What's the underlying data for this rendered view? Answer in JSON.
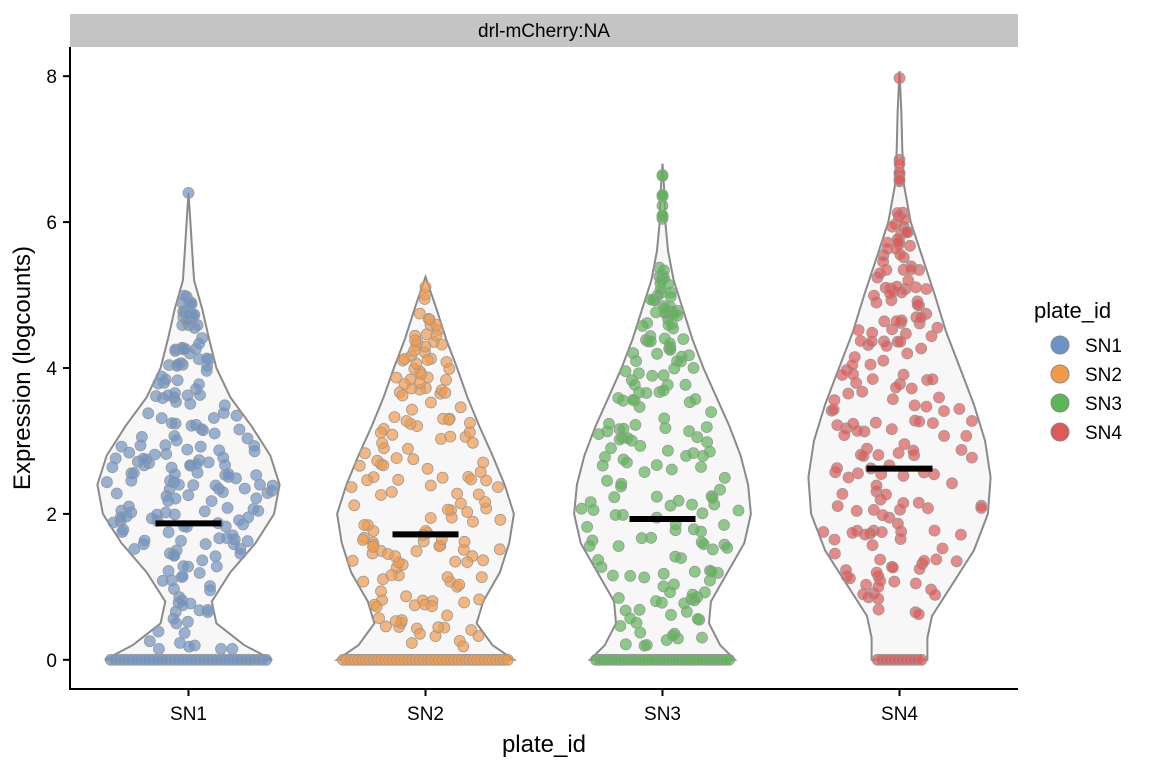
{
  "chart_data": {
    "type": "violin",
    "facet_label": "drl-mCherry:NA",
    "xlabel": "plate_id",
    "ylabel": "Expression (logcounts)",
    "ylim": [
      -0.4,
      8.4
    ],
    "yticks": [
      0,
      2,
      4,
      6,
      8
    ],
    "categories": [
      "SN1",
      "SN2",
      "SN3",
      "SN4"
    ],
    "legend": {
      "title": "plate_id",
      "position": "right",
      "entries": [
        {
          "label": "SN1",
          "color": "#6d93c5"
        },
        {
          "label": "SN2",
          "color": "#f29a4a"
        },
        {
          "label": "SN3",
          "color": "#5cb556"
        },
        {
          "label": "SN4",
          "color": "#df5a57"
        }
      ]
    },
    "series": [
      {
        "category": "SN1",
        "color": "#6d93c5",
        "median": 1.87,
        "max": 6.4,
        "zero_count": 38,
        "density": [
          [
            0,
            0.9
          ],
          [
            0.2,
            0.6
          ],
          [
            0.5,
            0.3
          ],
          [
            0.8,
            0.25
          ],
          [
            1.2,
            0.45
          ],
          [
            1.6,
            0.72
          ],
          [
            2.0,
            0.92
          ],
          [
            2.4,
            0.98
          ],
          [
            2.8,
            0.88
          ],
          [
            3.2,
            0.68
          ],
          [
            3.6,
            0.45
          ],
          [
            4.0,
            0.3
          ],
          [
            4.4,
            0.22
          ],
          [
            4.8,
            0.15
          ],
          [
            5.2,
            0.06
          ],
          [
            5.6,
            0.04
          ],
          [
            6.0,
            0.02
          ],
          [
            6.4,
            0.0
          ]
        ],
        "nonzero_points": [
          0.2,
          0.5,
          0.8,
          1.1,
          1.3,
          1.5,
          1.6,
          1.8,
          1.9,
          2.0,
          2.1,
          2.2,
          2.3,
          2.4,
          2.5,
          2.6,
          2.7,
          2.8,
          2.9,
          3.0,
          3.2,
          3.4,
          3.6,
          3.8,
          4.0,
          4.2,
          4.4,
          4.6,
          4.8,
          4.9,
          6.4
        ]
      },
      {
        "category": "SN2",
        "color": "#f29a4a",
        "median": 1.72,
        "max": 5.25,
        "zero_count": 44,
        "density": [
          [
            0,
            0.95
          ],
          [
            0.2,
            0.72
          ],
          [
            0.5,
            0.55
          ],
          [
            0.8,
            0.62
          ],
          [
            1.2,
            0.8
          ],
          [
            1.6,
            0.9
          ],
          [
            2.0,
            0.95
          ],
          [
            2.4,
            0.85
          ],
          [
            2.8,
            0.72
          ],
          [
            3.2,
            0.58
          ],
          [
            3.6,
            0.45
          ],
          [
            4.0,
            0.34
          ],
          [
            4.4,
            0.22
          ],
          [
            4.8,
            0.12
          ],
          [
            5.25,
            0.0
          ]
        ],
        "nonzero_points": [
          0.3,
          0.5,
          0.7,
          0.9,
          1.0,
          1.2,
          1.4,
          1.5,
          1.7,
          1.8,
          2.0,
          2.2,
          2.4,
          2.6,
          2.8,
          3.0,
          3.2,
          3.4,
          3.6,
          3.8,
          4.0,
          4.2,
          4.4,
          4.6,
          4.8,
          5.0,
          5.25
        ]
      },
      {
        "category": "SN3",
        "color": "#5cb556",
        "median": 1.93,
        "max": 6.8,
        "zero_count": 40,
        "density": [
          [
            0,
            0.78
          ],
          [
            0.2,
            0.62
          ],
          [
            0.5,
            0.5
          ],
          [
            0.8,
            0.52
          ],
          [
            1.2,
            0.7
          ],
          [
            1.6,
            0.88
          ],
          [
            2.0,
            0.95
          ],
          [
            2.4,
            0.92
          ],
          [
            2.8,
            0.84
          ],
          [
            3.2,
            0.72
          ],
          [
            3.6,
            0.58
          ],
          [
            4.0,
            0.44
          ],
          [
            4.4,
            0.32
          ],
          [
            4.8,
            0.22
          ],
          [
            5.2,
            0.12
          ],
          [
            5.6,
            0.06
          ],
          [
            6.0,
            0.03
          ],
          [
            6.4,
            0.02
          ],
          [
            6.8,
            0.0
          ]
        ],
        "nonzero_points": [
          0.3,
          0.5,
          0.7,
          0.9,
          1.1,
          1.3,
          1.5,
          1.7,
          1.9,
          2.1,
          2.3,
          2.5,
          2.7,
          2.9,
          3.1,
          3.3,
          3.5,
          3.7,
          3.9,
          4.1,
          4.3,
          4.5,
          4.7,
          4.9,
          5.1,
          5.3,
          6.2,
          6.5,
          6.8
        ]
      },
      {
        "category": "SN4",
        "color": "#df5a57",
        "median": 2.62,
        "max": 8.07,
        "zero_count": 12,
        "density": [
          [
            0,
            0.3
          ],
          [
            0.3,
            0.3
          ],
          [
            0.6,
            0.35
          ],
          [
            1.0,
            0.55
          ],
          [
            1.5,
            0.8
          ],
          [
            2.0,
            0.95
          ],
          [
            2.5,
            0.98
          ],
          [
            3.0,
            0.92
          ],
          [
            3.5,
            0.8
          ],
          [
            4.0,
            0.65
          ],
          [
            4.5,
            0.5
          ],
          [
            5.0,
            0.38
          ],
          [
            5.5,
            0.25
          ],
          [
            6.0,
            0.12
          ],
          [
            6.5,
            0.05
          ],
          [
            7.0,
            0.03
          ],
          [
            7.5,
            0.02
          ],
          [
            8.07,
            0.0
          ]
        ],
        "nonzero_points": [
          0.8,
          1.0,
          1.2,
          1.4,
          1.6,
          1.8,
          2.0,
          2.2,
          2.4,
          2.6,
          2.8,
          3.0,
          3.2,
          3.4,
          3.6,
          3.8,
          4.0,
          4.2,
          4.4,
          4.6,
          4.8,
          5.0,
          5.2,
          5.4,
          5.6,
          5.8,
          6.0,
          6.7,
          8.07
        ]
      }
    ]
  }
}
